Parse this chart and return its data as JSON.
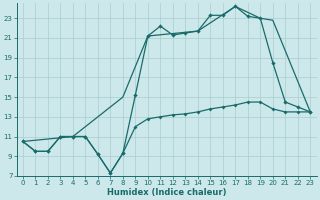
{
  "xlabel": "Humidex (Indice chaleur)",
  "xlim": [
    -0.5,
    23.5
  ],
  "ylim": [
    7,
    24.5
  ],
  "yticks": [
    7,
    9,
    11,
    13,
    15,
    17,
    19,
    21,
    23
  ],
  "xticks": [
    0,
    1,
    2,
    3,
    4,
    5,
    6,
    7,
    8,
    9,
    10,
    11,
    12,
    13,
    14,
    15,
    16,
    17,
    18,
    19,
    20,
    21,
    22,
    23
  ],
  "bg_color": "#cce8ea",
  "line_color": "#1a6b6b",
  "grid_color": "#aacdd0",
  "line1_x": [
    0,
    1,
    2,
    3,
    4,
    5,
    6,
    7,
    8,
    9,
    10,
    11,
    12,
    13,
    14,
    15,
    16,
    17,
    18,
    19,
    20,
    21,
    22,
    23
  ],
  "line1_y": [
    10.5,
    9.5,
    9.5,
    11.0,
    11.0,
    11.0,
    9.2,
    7.3,
    9.3,
    15.2,
    21.2,
    22.2,
    21.3,
    21.5,
    21.7,
    23.3,
    23.3,
    24.2,
    23.2,
    23.0,
    18.5,
    14.5,
    14.0,
    13.5
  ],
  "line2_x": [
    0,
    1,
    2,
    3,
    4,
    5,
    6,
    7,
    8,
    9,
    10,
    11,
    12,
    13,
    14,
    15,
    16,
    17,
    18,
    19,
    20,
    21,
    22,
    23
  ],
  "line2_y": [
    10.5,
    9.5,
    9.5,
    11.0,
    11.0,
    11.0,
    9.2,
    7.3,
    9.3,
    12.0,
    12.8,
    13.0,
    13.2,
    13.3,
    13.5,
    13.8,
    14.0,
    14.2,
    14.5,
    14.5,
    13.8,
    13.5,
    13.5,
    13.5
  ],
  "line3_x": [
    0,
    4,
    8,
    10,
    14,
    17,
    19,
    20,
    23
  ],
  "line3_y": [
    10.5,
    11.0,
    15.0,
    21.2,
    21.7,
    24.2,
    23.0,
    22.8,
    13.5
  ]
}
